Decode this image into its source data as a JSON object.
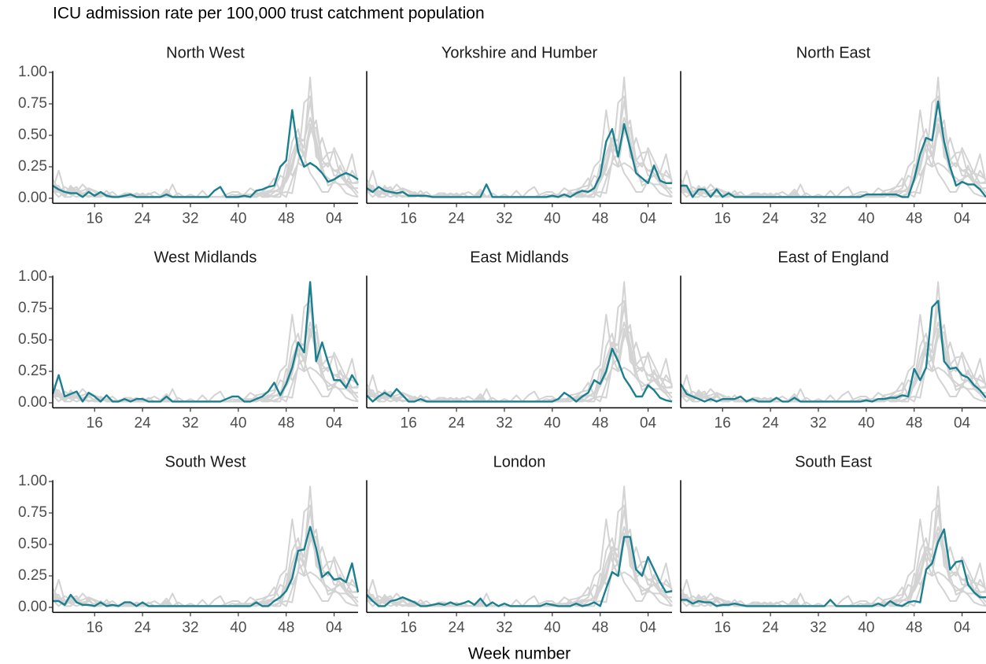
{
  "chart_data": {
    "type": "line",
    "title": "ICU admission rate per 100,000 trust catchment population",
    "x_label": "Week number",
    "highlight_color": "#1a7f8e",
    "other_color": "#d3d3d3",
    "x": [
      9,
      10,
      11,
      12,
      13,
      14,
      15,
      16,
      17,
      18,
      19,
      20,
      21,
      22,
      23,
      24,
      25,
      26,
      27,
      28,
      29,
      30,
      31,
      32,
      33,
      34,
      35,
      36,
      37,
      38,
      39,
      40,
      41,
      42,
      43,
      44,
      45,
      46,
      47,
      48,
      49,
      50,
      51,
      52,
      53,
      54,
      55,
      56,
      57,
      58,
      59,
      60
    ],
    "xlim": [
      9,
      60
    ],
    "xticks": [
      16,
      24,
      32,
      40,
      48,
      {
        "value": 56,
        "label": "04"
      }
    ],
    "ylim": [
      -0.04,
      1.01
    ],
    "yticks": [
      {
        "value": 0,
        "label": "0.00"
      },
      {
        "value": 0.25,
        "label": "0.25"
      },
      {
        "value": 0.5,
        "label": "0.50"
      },
      {
        "value": 0.75,
        "label": "0.75"
      },
      {
        "value": 1,
        "label": "1.00"
      }
    ],
    "series": [
      {
        "name": "North West",
        "values": [
          0.1,
          0.07,
          0.05,
          0.04,
          0.04,
          0.01,
          0.05,
          0.02,
          0.05,
          0.02,
          0.01,
          0.01,
          0.02,
          0.03,
          0.01,
          0.01,
          0.01,
          0.01,
          0.01,
          0.03,
          0.01,
          0.01,
          0.01,
          0.01,
          0.01,
          0.01,
          0.01,
          0.06,
          0.09,
          0.01,
          0.01,
          0.01,
          0.02,
          0.01,
          0.06,
          0.07,
          0.09,
          0.1,
          0.25,
          0.3,
          0.7,
          0.37,
          0.25,
          0.28,
          0.25,
          0.2,
          0.13,
          0.15,
          0.18,
          0.2,
          0.18,
          0.15
        ]
      },
      {
        "name": "Yorkshire and Humber",
        "values": [
          0.08,
          0.05,
          0.09,
          0.06,
          0.05,
          0.04,
          0.05,
          0.02,
          0.02,
          0.02,
          0.02,
          0.01,
          0.01,
          0.01,
          0.01,
          0.01,
          0.01,
          0.01,
          0.01,
          0.01,
          0.11,
          0.01,
          0.01,
          0.01,
          0.01,
          0.01,
          0.01,
          0.01,
          0.01,
          0.01,
          0.01,
          0.02,
          0.01,
          0.03,
          0.01,
          0.04,
          0.06,
          0.05,
          0.08,
          0.18,
          0.45,
          0.55,
          0.33,
          0.59,
          0.4,
          0.2,
          0.16,
          0.12,
          0.26,
          0.14,
          0.12,
          0.12
        ]
      },
      {
        "name": "North East",
        "values": [
          0.1,
          0.1,
          0.01,
          0.07,
          0.07,
          0.01,
          0.07,
          0.01,
          0.04,
          0.01,
          0.01,
          0.01,
          0.01,
          0.01,
          0.01,
          0.01,
          0.01,
          0.01,
          0.01,
          0.01,
          0.01,
          0.01,
          0.01,
          0.01,
          0.01,
          0.01,
          0.01,
          0.01,
          0.01,
          0.01,
          0.01,
          0.03,
          0.03,
          0.03,
          0.03,
          0.03,
          0.03,
          0.01,
          0.01,
          0.15,
          0.35,
          0.48,
          0.46,
          0.77,
          0.45,
          0.25,
          0.1,
          0.13,
          0.11,
          0.11,
          0.07,
          0.01
        ]
      },
      {
        "name": "West Midlands",
        "values": [
          0.07,
          0.22,
          0.05,
          0.07,
          0.09,
          0.01,
          0.08,
          0.05,
          0.01,
          0.06,
          0.01,
          0.01,
          0.03,
          0.01,
          0.03,
          0.03,
          0.01,
          0.01,
          0.01,
          0.05,
          0.01,
          0.01,
          0.01,
          0.01,
          0.01,
          0.01,
          0.01,
          0.01,
          0.01,
          0.03,
          0.05,
          0.05,
          0.01,
          0.01,
          0.03,
          0.05,
          0.09,
          0.16,
          0.06,
          0.15,
          0.28,
          0.48,
          0.4,
          0.96,
          0.33,
          0.48,
          0.32,
          0.18,
          0.18,
          0.12,
          0.22,
          0.14
        ]
      },
      {
        "name": "East Midlands",
        "values": [
          0.06,
          0.01,
          0.05,
          0.08,
          0.05,
          0.11,
          0.06,
          0.01,
          0.01,
          0.03,
          0.01,
          0.01,
          0.01,
          0.01,
          0.01,
          0.01,
          0.01,
          0.01,
          0.01,
          0.01,
          0.01,
          0.01,
          0.01,
          0.01,
          0.01,
          0.01,
          0.01,
          0.01,
          0.01,
          0.01,
          0.01,
          0.01,
          0.03,
          0.08,
          0.05,
          0.01,
          0.05,
          0.08,
          0.18,
          0.15,
          0.25,
          0.43,
          0.33,
          0.2,
          0.13,
          0.05,
          0.05,
          0.14,
          0.1,
          0.04,
          0.02,
          0.01
        ]
      },
      {
        "name": "East of England",
        "values": [
          0.15,
          0.07,
          0.05,
          0.03,
          0.01,
          0.03,
          0.01,
          0.03,
          0.03,
          0.03,
          0.05,
          0.01,
          0.03,
          0.01,
          0.01,
          0.01,
          0.04,
          0.01,
          0.01,
          0.04,
          0.01,
          0.01,
          0.01,
          0.01,
          0.01,
          0.01,
          0.01,
          0.01,
          0.01,
          0.01,
          0.01,
          0.02,
          0.01,
          0.03,
          0.03,
          0.04,
          0.04,
          0.06,
          0.05,
          0.27,
          0.18,
          0.28,
          0.76,
          0.81,
          0.33,
          0.27,
          0.28,
          0.22,
          0.2,
          0.14,
          0.1,
          0.04
        ]
      },
      {
        "name": "South West",
        "values": [
          0.05,
          0.05,
          0.02,
          0.1,
          0.04,
          0.02,
          0.02,
          0.01,
          0.04,
          0.01,
          0.02,
          0.01,
          0.04,
          0.04,
          0.01,
          0.04,
          0.01,
          0.01,
          0.01,
          0.01,
          0.01,
          0.01,
          0.01,
          0.01,
          0.01,
          0.01,
          0.01,
          0.01,
          0.01,
          0.01,
          0.01,
          0.01,
          0.01,
          0.01,
          0.04,
          0.01,
          0.01,
          0.05,
          0.08,
          0.13,
          0.23,
          0.45,
          0.46,
          0.64,
          0.47,
          0.24,
          0.28,
          0.22,
          0.23,
          0.2,
          0.35,
          0.12
        ]
      },
      {
        "name": "London",
        "values": [
          0.1,
          0.05,
          0.01,
          0.01,
          0.05,
          0.06,
          0.08,
          0.06,
          0.04,
          0.01,
          0.01,
          0.02,
          0.03,
          0.02,
          0.04,
          0.02,
          0.03,
          0.05,
          0.02,
          0.07,
          0.01,
          0.04,
          0.01,
          0.03,
          0.01,
          0.01,
          0.01,
          0.01,
          0.01,
          0.01,
          0.03,
          0.02,
          0.01,
          0.01,
          0.01,
          0.03,
          0.01,
          0.02,
          0.04,
          0.01,
          0.15,
          0.28,
          0.25,
          0.56,
          0.56,
          0.3,
          0.25,
          0.4,
          0.3,
          0.2,
          0.12,
          0.13
        ]
      },
      {
        "name": "South East",
        "values": [
          0.06,
          0.06,
          0.03,
          0.05,
          0.04,
          0.04,
          0.01,
          0.02,
          0.02,
          0.03,
          0.02,
          0.01,
          0.01,
          0.01,
          0.01,
          0.01,
          0.01,
          0.01,
          0.01,
          0.01,
          0.01,
          0.01,
          0.01,
          0.01,
          0.01,
          0.06,
          0.01,
          0.01,
          0.01,
          0.01,
          0.01,
          0.01,
          0.01,
          0.03,
          0.01,
          0.05,
          0.02,
          0.01,
          0.04,
          0.05,
          0.04,
          0.3,
          0.35,
          0.52,
          0.62,
          0.3,
          0.36,
          0.37,
          0.18,
          0.12,
          0.08,
          0.08
        ]
      }
    ]
  }
}
